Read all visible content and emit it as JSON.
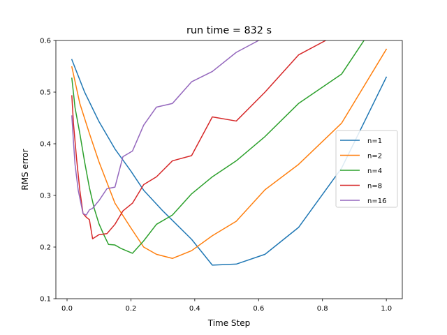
{
  "chart_data": {
    "type": "line",
    "title": "run time = 832 s",
    "xlabel": "Time Step",
    "ylabel": "RMS error",
    "xlim": [
      -0.035,
      1.05
    ],
    "ylim": [
      0.1,
      0.6
    ],
    "xticks": [
      0.0,
      0.2,
      0.4,
      0.6,
      0.8,
      1.0
    ],
    "xtick_labels": [
      "0.0",
      "0.2",
      "0.4",
      "0.6",
      "0.8",
      "1.0"
    ],
    "yticks": [
      0.1,
      0.2,
      0.3,
      0.4,
      0.5,
      0.6
    ],
    "ytick_labels": [
      "0.1",
      "0.2",
      "0.3",
      "0.4",
      "0.5",
      "0.6"
    ],
    "grid": false,
    "legend_position": "center-right",
    "series": [
      {
        "name": "n=1",
        "color": "#1f77b4",
        "x": [
          0.015,
          0.055,
          0.1,
          0.15,
          0.2,
          0.24,
          0.3,
          0.39,
          0.455,
          0.53,
          0.62,
          0.725,
          0.86,
          1.0
        ],
        "y": [
          0.563,
          0.5,
          0.443,
          0.39,
          0.347,
          0.31,
          0.27,
          0.215,
          0.165,
          0.167,
          0.186,
          0.238,
          0.353,
          0.529
        ]
      },
      {
        "name": "n=2",
        "color": "#ff7f0e",
        "x": [
          0.015,
          0.04,
          0.07,
          0.1,
          0.15,
          0.2,
          0.24,
          0.28,
          0.33,
          0.39,
          0.455,
          0.53,
          0.62,
          0.725,
          0.86,
          1.0
        ],
        "y": [
          0.549,
          0.478,
          0.42,
          0.365,
          0.285,
          0.237,
          0.2,
          0.186,
          0.178,
          0.193,
          0.222,
          0.25,
          0.311,
          0.36,
          0.44,
          0.583
        ]
      },
      {
        "name": "n=4",
        "color": "#2ca02c",
        "x": [
          0.015,
          0.025,
          0.04,
          0.055,
          0.07,
          0.085,
          0.1,
          0.115,
          0.13,
          0.15,
          0.17,
          0.205,
          0.24,
          0.28,
          0.33,
          0.39,
          0.455,
          0.53,
          0.62,
          0.725,
          0.86,
          0.93
        ],
        "y": [
          0.527,
          0.47,
          0.42,
          0.365,
          0.315,
          0.275,
          0.245,
          0.224,
          0.205,
          0.204,
          0.197,
          0.188,
          0.212,
          0.244,
          0.262,
          0.303,
          0.336,
          0.367,
          0.414,
          0.478,
          0.535,
          0.6
        ]
      },
      {
        "name": "n=8",
        "color": "#d62728",
        "x": [
          0.015,
          0.02,
          0.03,
          0.04,
          0.05,
          0.06,
          0.07,
          0.08,
          0.1,
          0.125,
          0.15,
          0.175,
          0.205,
          0.24,
          0.28,
          0.33,
          0.39,
          0.455,
          0.53,
          0.62,
          0.725,
          0.81
        ],
        "y": [
          0.493,
          0.44,
          0.37,
          0.31,
          0.265,
          0.258,
          0.253,
          0.216,
          0.224,
          0.226,
          0.244,
          0.27,
          0.285,
          0.321,
          0.336,
          0.367,
          0.377,
          0.452,
          0.444,
          0.5,
          0.572,
          0.6
        ]
      },
      {
        "name": "n=16",
        "color": "#9467bd",
        "x": [
          0.015,
          0.02,
          0.025,
          0.035,
          0.05,
          0.06,
          0.07,
          0.08,
          0.1,
          0.125,
          0.15,
          0.175,
          0.205,
          0.24,
          0.28,
          0.33,
          0.39,
          0.455,
          0.53,
          0.6
        ],
        "y": [
          0.454,
          0.405,
          0.36,
          0.31,
          0.265,
          0.262,
          0.272,
          0.275,
          0.29,
          0.313,
          0.316,
          0.375,
          0.386,
          0.436,
          0.471,
          0.478,
          0.52,
          0.54,
          0.577,
          0.6
        ]
      }
    ]
  }
}
